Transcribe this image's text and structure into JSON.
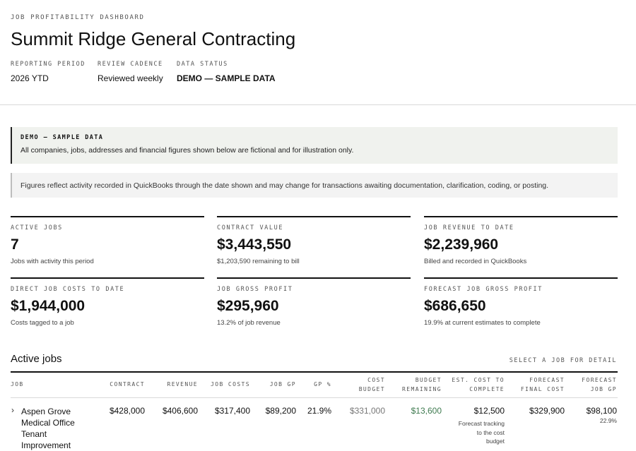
{
  "header": {
    "eyebrow": "JOB PROFITABILITY DASHBOARD",
    "title": "Summit Ridge General Contracting",
    "meta": [
      {
        "label": "REPORTING PERIOD",
        "value": "2026 YTD"
      },
      {
        "label": "REVIEW CADENCE",
        "value": "Reviewed weekly"
      },
      {
        "label": "DATA STATUS",
        "value": "DEMO — SAMPLE DATA"
      }
    ]
  },
  "demo_banner": {
    "title": "DEMO — SAMPLE DATA",
    "text": "All companies, jobs, addresses and financial figures shown below are fictional and for illustration only."
  },
  "note_banner": {
    "text": "Figures reflect activity recorded in QuickBooks through the date shown and may change for transactions awaiting documentation, clarification, coding, or posting."
  },
  "kpis": [
    {
      "label": "ACTIVE JOBS",
      "value": "7",
      "sub": "Jobs with activity this period"
    },
    {
      "label": "CONTRACT VALUE",
      "value": "$3,443,550",
      "sub": "$1,203,590 remaining to bill"
    },
    {
      "label": "JOB REVENUE TO DATE",
      "value": "$2,239,960",
      "sub": "Billed and recorded in QuickBooks"
    },
    {
      "label": "DIRECT JOB COSTS TO DATE",
      "value": "$1,944,000",
      "sub": "Costs tagged to a job"
    },
    {
      "label": "JOB GROSS PROFIT",
      "value": "$295,960",
      "sub": "13.2% of job revenue"
    },
    {
      "label": "FORECAST JOB GROSS PROFIT",
      "value": "$686,650",
      "sub": "19.9% at current estimates to complete"
    }
  ],
  "jobs": {
    "title": "Active jobs",
    "hint": "SELECT A JOB FOR DETAIL",
    "columns": {
      "job": "JOB",
      "contract": "CONTRACT",
      "revenue": "REVENUE",
      "job_costs": "JOB COSTS",
      "job_gp": "JOB GP",
      "gp_pct": "GP %",
      "cost_budget_1": "COST",
      "cost_budget_2": "BUDGET",
      "budget_remaining_1": "BUDGET",
      "budget_remaining_2": "REMAINING",
      "est_cost_1": "EST. COST TO",
      "est_cost_2": "COMPLETE",
      "forecast_final_1": "FORECAST",
      "forecast_final_2": "FINAL COST",
      "forecast_gp_1": "FORECAST",
      "forecast_gp_2": "JOB GP"
    },
    "rows": [
      {
        "chevron": "›",
        "name": "Aspen Grove Medical Office Tenant Improvement",
        "contract": "$428,000",
        "revenue": "$406,600",
        "job_costs": "$317,400",
        "job_gp": "$89,200",
        "gp_pct": "21.9%",
        "cost_budget": "$331,000",
        "budget_remaining": "$13,600",
        "est_cost": "$12,500",
        "est_note_1": "Forecast tracking",
        "est_note_2": "to the cost",
        "est_note_3": "budget",
        "forecast_final": "$329,900",
        "forecast_gp": "$98,100",
        "forecast_gp_pct": "22.9%"
      }
    ]
  }
}
